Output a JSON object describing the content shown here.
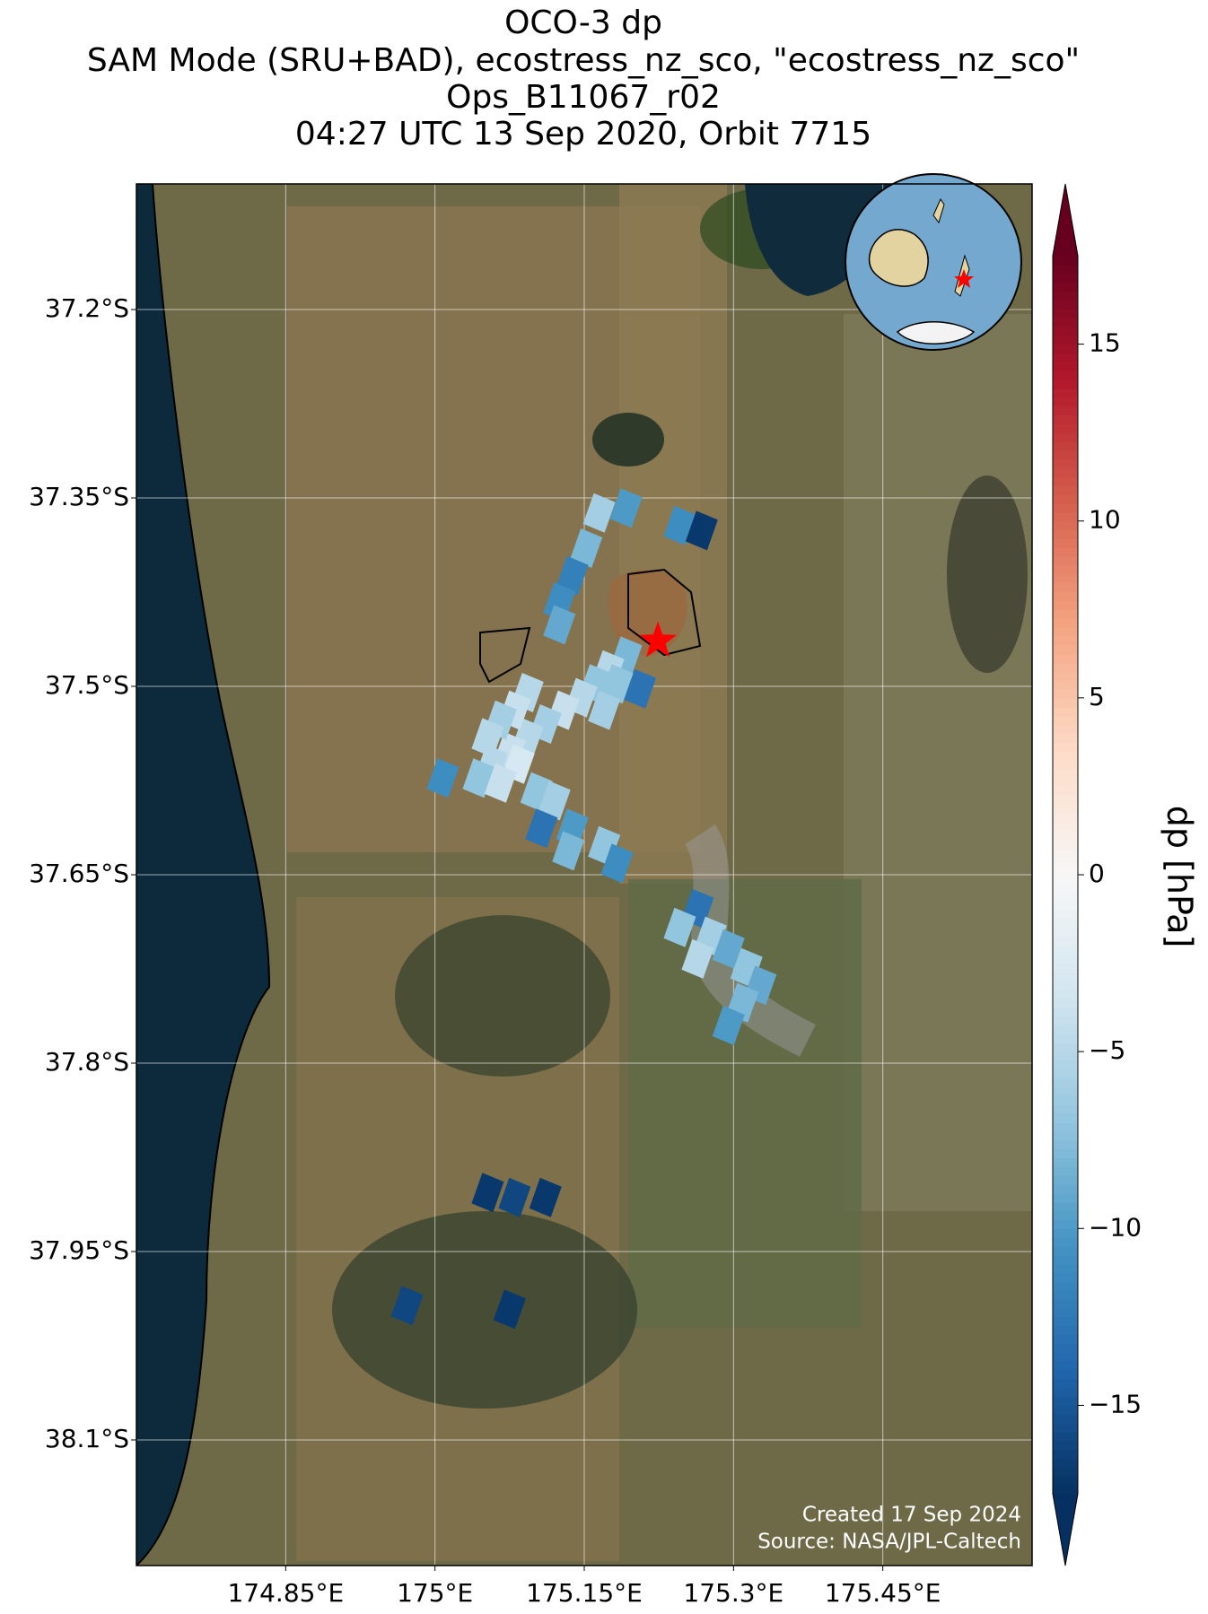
{
  "chart_data": {
    "type": "footprint_map",
    "title": [
      "OCO-3 dp",
      "SAM Mode (SRU+BAD), ecostress_nz_sco, \"ecostress_nz_sco\"",
      "Ops_B11067_r02",
      "04:27 UTC 13 Sep 2020, Orbit 7715"
    ],
    "colorbar_label": "dp [hPa]",
    "annotations": [
      "Created 17 Sep 2024",
      "Source: NASA/JPL-Caltech"
    ],
    "colormap": "RdBu_r",
    "clim": [
      -17.5,
      17.5
    ],
    "cticks": [
      {
        "value": -15,
        "label": "−15"
      },
      {
        "value": -10,
        "label": "−10"
      },
      {
        "value": -5,
        "label": "−5"
      },
      0,
      5,
      10,
      15
    ],
    "xlim": [
      174.7,
      175.6
    ],
    "ylim": [
      -38.2,
      -37.1
    ],
    "xticks": [
      {
        "value": 174.85,
        "label": "174.85°E"
      },
      {
        "value": 175.0,
        "label": "175°E"
      },
      {
        "value": 175.15,
        "label": "175.15°E"
      },
      {
        "value": 175.3,
        "label": "175.3°E"
      },
      {
        "value": 175.45,
        "label": "175.45°E"
      }
    ],
    "yticks": [
      {
        "value": -37.2,
        "label": "37.2°S"
      },
      {
        "value": -37.35,
        "label": "37.35°S"
      },
      {
        "value": -37.5,
        "label": "37.5°S"
      },
      {
        "value": -37.65,
        "label": "37.65°S"
      },
      {
        "value": -37.8,
        "label": "37.8°S"
      },
      {
        "value": -37.95,
        "label": "37.95°S"
      },
      {
        "value": -38.1,
        "label": "38.1°S"
      }
    ],
    "grid": true,
    "target": {
      "x": 175.224,
      "y": -37.464,
      "color": "#ff0000"
    },
    "x": [
      175.165,
      175.152,
      175.138,
      175.125,
      175.192,
      175.246,
      175.268,
      175.125,
      175.192,
      175.174,
      175.161,
      175.147,
      175.129,
      175.111,
      175.093,
      175.075,
      175.057,
      175.044,
      175.093,
      175.08,
      175.066,
      175.053,
      175.084,
      175.066,
      175.102,
      175.206,
      175.183,
      175.17,
      175.008,
      175.138,
      175.12,
      175.107,
      175.134,
      175.17,
      175.183,
      175.264,
      175.246,
      175.277,
      175.295,
      175.313,
      175.327,
      175.309,
      175.295,
      175.264,
      175.053,
      175.08,
      175.111,
      174.972,
      175.075
    ],
    "y": [
      -37.362,
      -37.39,
      -37.412,
      -37.433,
      -37.358,
      -37.372,
      -37.376,
      -37.451,
      -37.476,
      -37.487,
      -37.498,
      -37.509,
      -37.519,
      -37.53,
      -37.541,
      -37.552,
      -37.562,
      -37.573,
      -37.505,
      -37.519,
      -37.527,
      -37.541,
      -37.562,
      -37.577,
      -37.584,
      -37.502,
      -37.498,
      -37.519,
      -37.573,
      -37.613,
      -37.591,
      -37.613,
      -37.631,
      -37.627,
      -37.641,
      -37.677,
      -37.692,
      -37.699,
      -37.709,
      -37.724,
      -37.738,
      -37.752,
      -37.77,
      -37.717,
      -37.903,
      -37.907,
      -37.907,
      -37.993,
      -37.996
    ],
    "values": [
      -6,
      -8,
      -12,
      -11,
      -10,
      -11,
      -17,
      -9,
      -8,
      -5,
      -7,
      -5,
      -4,
      -6,
      -5,
      -4,
      -5,
      -7,
      -5,
      -4,
      -6,
      -5,
      -3,
      -4,
      -7,
      -13,
      -7,
      -6,
      -11,
      -10,
      -6,
      -13,
      -8,
      -7,
      -11,
      -13,
      -7,
      -6,
      -9,
      -7,
      -9,
      -8,
      -10,
      -5,
      -17,
      -16,
      -17,
      -16,
      -17
    ]
  }
}
